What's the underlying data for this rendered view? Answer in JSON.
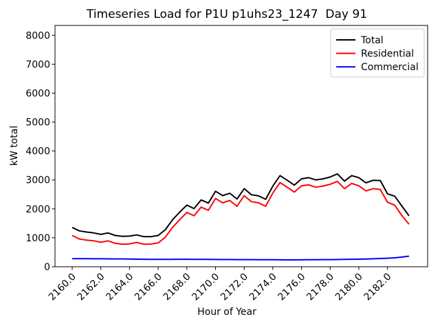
{
  "figure": {
    "background": "#ffffff",
    "title": "Timeseries Load for P1U p1uhs23_1247  Day 91"
  },
  "chart_data": {
    "type": "line",
    "title": "Timeseries Load for P1U p1uhs23_1247  Day 91",
    "xlabel": "Hour of Year",
    "ylabel": "kW total",
    "xlim": [
      2158.8,
      2184.8
    ],
    "ylim": [
      0,
      8340
    ],
    "grid": false,
    "legend_position": "upper right",
    "legend_border_color": "#cccccc",
    "xtick_values": [
      2160,
      2162,
      2164,
      2166,
      2168,
      2170,
      2172,
      2174,
      2176,
      2178,
      2180,
      2182
    ],
    "xtick_labels": [
      "2160.0",
      "2162.0",
      "2164.0",
      "2166.0",
      "2168.0",
      "2170.0",
      "2172.0",
      "2174.0",
      "2176.0",
      "2178.0",
      "2180.0",
      "2182.0"
    ],
    "ytick_values": [
      0,
      1000,
      2000,
      3000,
      4000,
      5000,
      6000,
      7000,
      8000
    ],
    "ytick_labels": [
      "0",
      "1000",
      "2000",
      "3000",
      "4000",
      "5000",
      "6000",
      "7000",
      "8000"
    ],
    "x": [
      2160.0,
      2160.5,
      2161.0,
      2161.5,
      2162.0,
      2162.5,
      2163.0,
      2163.5,
      2164.0,
      2164.5,
      2165.0,
      2165.5,
      2166.0,
      2166.5,
      2167.0,
      2167.5,
      2168.0,
      2168.5,
      2169.0,
      2169.5,
      2170.0,
      2170.5,
      2171.0,
      2171.5,
      2172.0,
      2172.5,
      2173.0,
      2173.5,
      2174.0,
      2174.5,
      2175.0,
      2175.5,
      2176.0,
      2176.5,
      2177.0,
      2177.5,
      2178.0,
      2178.5,
      2179.0,
      2179.5,
      2180.0,
      2180.5,
      2181.0,
      2181.5,
      2182.0,
      2182.5,
      2183.0,
      2183.5
    ],
    "series": [
      {
        "name": "Total",
        "color": "#000000",
        "values": [
          1360,
          1240,
          1200,
          1170,
          1120,
          1170,
          1080,
          1050,
          1060,
          1100,
          1040,
          1040,
          1080,
          1280,
          1620,
          1890,
          2130,
          2010,
          2310,
          2200,
          2610,
          2460,
          2540,
          2340,
          2700,
          2490,
          2450,
          2330,
          2790,
          3150,
          2990,
          2820,
          3040,
          3080,
          3000,
          3040,
          3100,
          3210,
          2960,
          3150,
          3080,
          2900,
          2990,
          2980,
          2520,
          2440,
          2100,
          1760
        ]
      },
      {
        "name": "Residential",
        "color": "#ff0000",
        "values": [
          1080,
          960,
          920,
          895,
          845,
          895,
          810,
          780,
          790,
          840,
          780,
          785,
          825,
          1020,
          1360,
          1630,
          1880,
          1760,
          2060,
          1950,
          2360,
          2210,
          2290,
          2090,
          2460,
          2250,
          2210,
          2090,
          2550,
          2910,
          2750,
          2580,
          2800,
          2830,
          2750,
          2790,
          2850,
          2950,
          2700,
          2880,
          2800,
          2620,
          2700,
          2670,
          2230,
          2130,
          1770,
          1470
        ]
      },
      {
        "name": "Commercial",
        "color": "#0000ff",
        "values": [
          280,
          280,
          278,
          276,
          275,
          274,
          272,
          270,
          268,
          262,
          258,
          255,
          254,
          254,
          256,
          258,
          258,
          256,
          255,
          254,
          252,
          250,
          250,
          248,
          248,
          246,
          245,
          244,
          242,
          240,
          238,
          238,
          240,
          242,
          244,
          246,
          248,
          250,
          254,
          258,
          262,
          268,
          275,
          284,
          295,
          310,
          335,
          365
        ]
      }
    ]
  }
}
